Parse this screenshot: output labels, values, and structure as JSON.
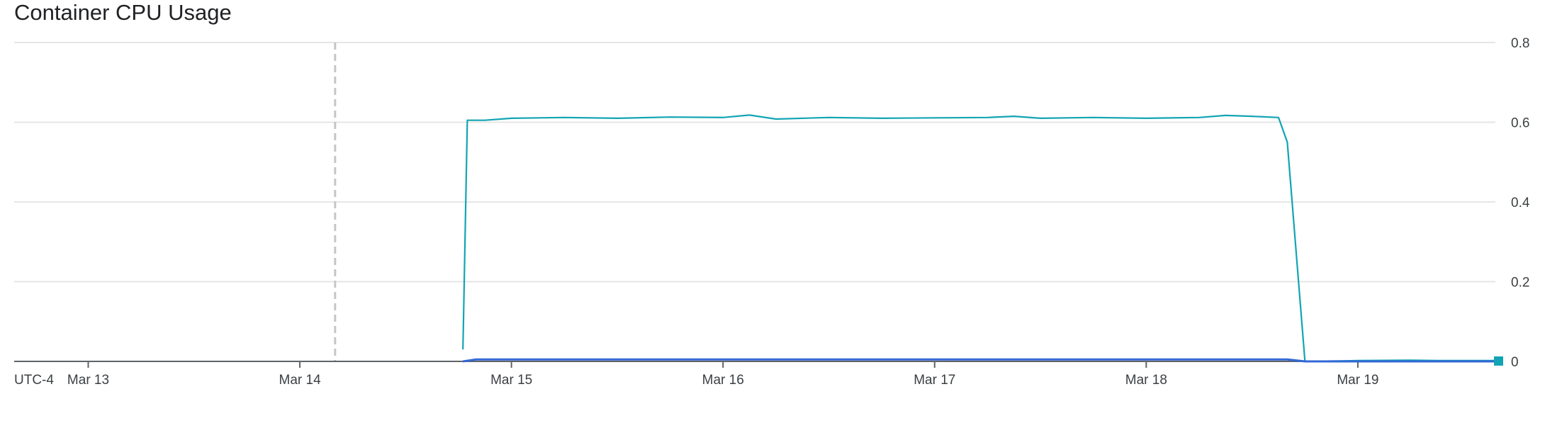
{
  "chart_data": {
    "type": "line",
    "title": "Container CPU Usage",
    "timezone_label": "UTC-4",
    "x_tick_labels": [
      "Mar 13",
      "Mar 14",
      "Mar 15",
      "Mar 16",
      "Mar 17",
      "Mar 18",
      "Mar 19"
    ],
    "y_tick_labels": [
      "0.8",
      "0.6",
      "0.4",
      "0.2",
      "0"
    ],
    "ylim": [
      0,
      0.8
    ],
    "xlim": [
      "Mar 12 15:36",
      "Mar 19 15:36"
    ],
    "grid": "horizontal",
    "y_axis_side": "right",
    "legend": "none",
    "now_marker": "Mar 14 04:00",
    "series": [
      {
        "color": "#12a4b4",
        "points": [
          [
            "Mar 14 18:30",
            0.03
          ],
          [
            "Mar 14 19:00",
            0.605
          ],
          [
            "Mar 14 21:00",
            0.605
          ],
          [
            "Mar 15 00:00",
            0.61
          ],
          [
            "Mar 15 06:00",
            0.612
          ],
          [
            "Mar 15 12:00",
            0.61
          ],
          [
            "Mar 15 18:00",
            0.613
          ],
          [
            "Mar 16 00:00",
            0.612
          ],
          [
            "Mar 16 03:00",
            0.618
          ],
          [
            "Mar 16 06:00",
            0.608
          ],
          [
            "Mar 16 12:00",
            0.612
          ],
          [
            "Mar 16 18:00",
            0.61
          ],
          [
            "Mar 17 00:00",
            0.611
          ],
          [
            "Mar 17 06:00",
            0.612
          ],
          [
            "Mar 17 09:00",
            0.615
          ],
          [
            "Mar 17 12:00",
            0.61
          ],
          [
            "Mar 17 18:00",
            0.612
          ],
          [
            "Mar 18 00:00",
            0.61
          ],
          [
            "Mar 18 06:00",
            0.612
          ],
          [
            "Mar 18 09:00",
            0.617
          ],
          [
            "Mar 18 12:00",
            0.615
          ],
          [
            "Mar 18 15:00",
            0.612
          ],
          [
            "Mar 18 16:00",
            0.55
          ],
          [
            "Mar 18 18:00",
            0.0
          ],
          [
            "Mar 19 00:00",
            0.002
          ],
          [
            "Mar 19 06:00",
            0.003
          ],
          [
            "Mar 19 09:00",
            0.002
          ],
          [
            "Mar 19 15:36",
            0.002
          ]
        ]
      },
      {
        "color": "#3367d6",
        "points": [
          [
            "Mar 14 18:30",
            0.0
          ],
          [
            "Mar 14 20:00",
            0.005
          ],
          [
            "Mar 18 16:00",
            0.005
          ],
          [
            "Mar 18 18:00",
            0.0
          ],
          [
            "Mar 19 15:36",
            0.0
          ]
        ]
      }
    ]
  }
}
